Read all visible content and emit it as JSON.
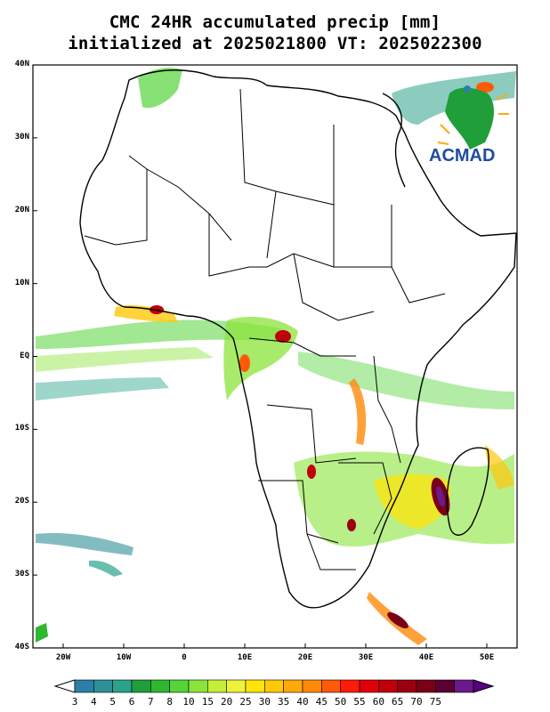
{
  "title": {
    "line1": "CMC 24HR accumulated precip [mm]",
    "line2": "initialized at 2025021800 VT: 2025022300"
  },
  "map": {
    "lat_labels": [
      "40N",
      "30N",
      "20N",
      "10N",
      "EQ",
      "10S",
      "20S",
      "30S",
      "40S"
    ],
    "lon_labels": [
      "20W",
      "10W",
      "0",
      "10E",
      "20E",
      "30E",
      "40E",
      "50E"
    ],
    "extent": {
      "lon_min": -25,
      "lon_max": 55,
      "lat_min": -40,
      "lat_max": 40
    }
  },
  "logo": {
    "text": "ACMAD"
  },
  "colorbar": {
    "labels": [
      "3",
      "4",
      "5",
      "6",
      "7",
      "8",
      "10",
      "15",
      "20",
      "25",
      "30",
      "35",
      "40",
      "45",
      "50",
      "55",
      "60",
      "65",
      "70",
      "75"
    ],
    "colors": [
      "#2c7fa8",
      "#2e8f96",
      "#2ba38a",
      "#1f9e3a",
      "#2eb82e",
      "#55d439",
      "#8be43a",
      "#c3ee3a",
      "#eef23a",
      "#ffe40a",
      "#ffc80a",
      "#ffaa0a",
      "#ff8a0a",
      "#ff5a0a",
      "#ff1a0a",
      "#e0000a",
      "#c0000a",
      "#9a0010",
      "#7a0018",
      "#5a0032",
      "#6a1a8a"
    ]
  }
}
